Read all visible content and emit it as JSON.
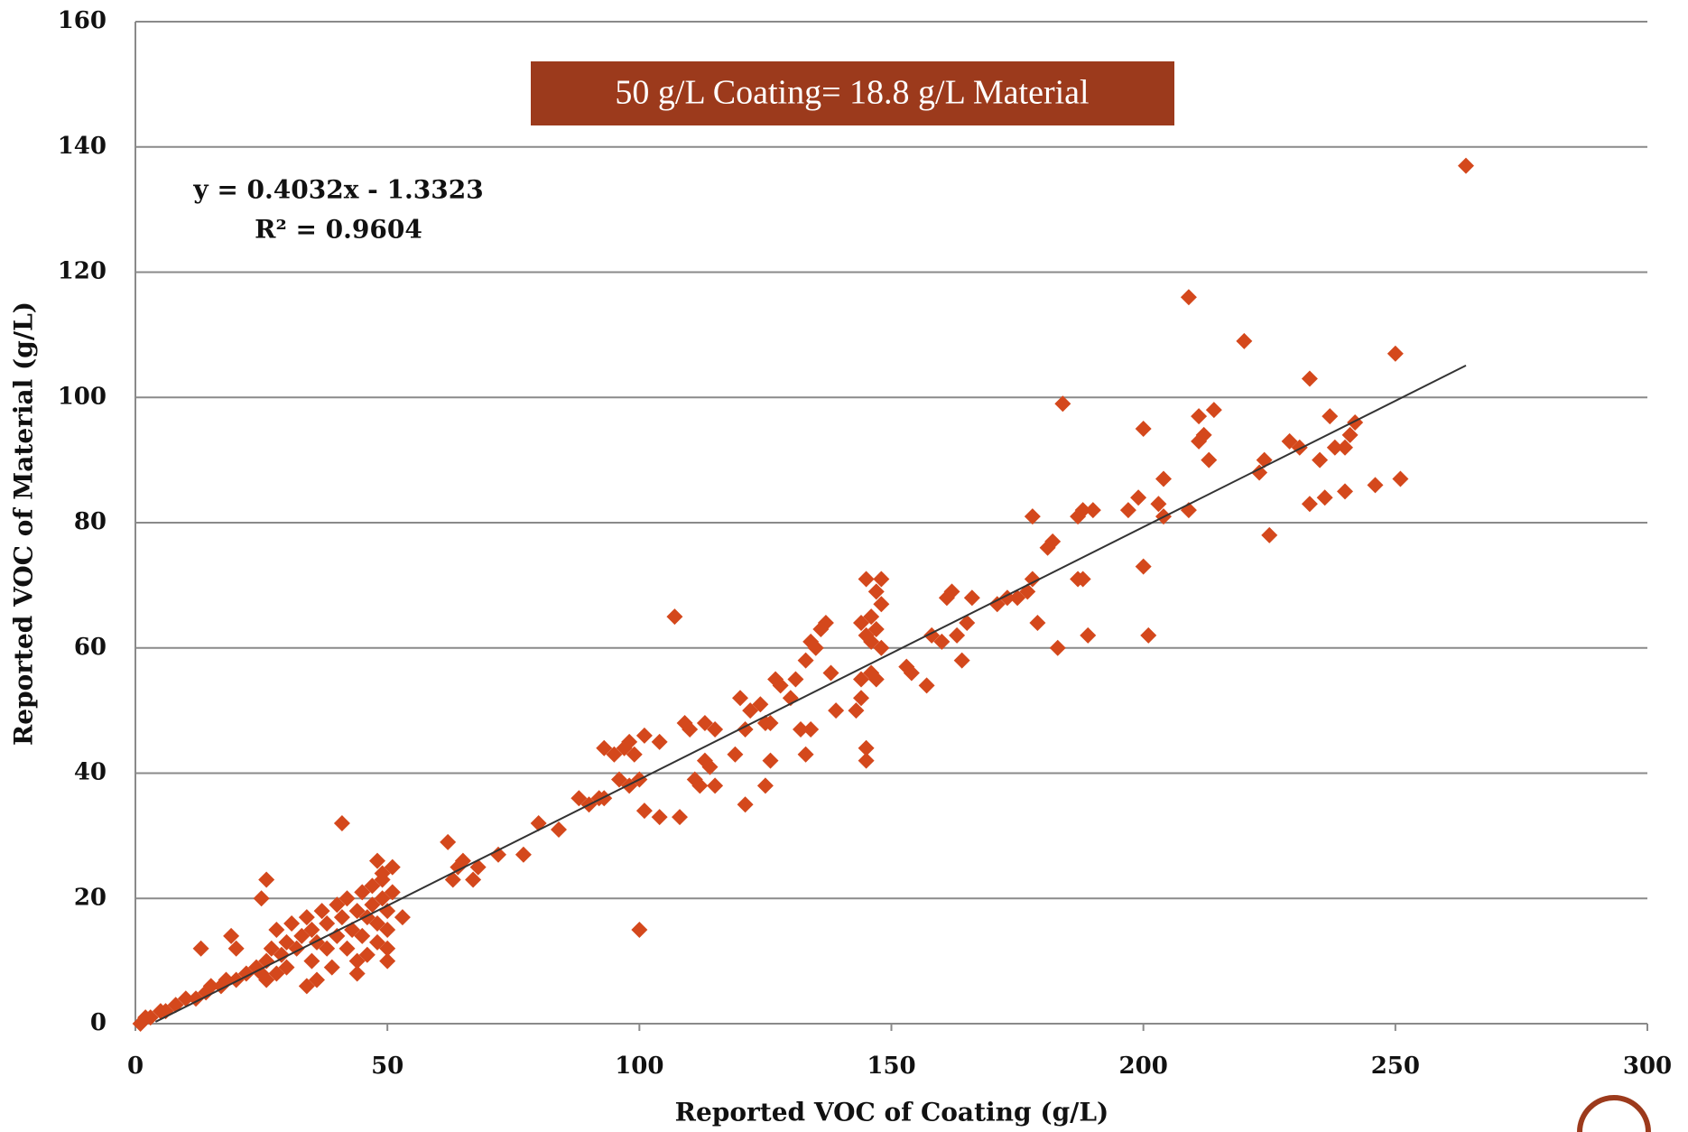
{
  "chart_data": {
    "type": "scatter",
    "annotation": "50 g/L Coating= 18.8 g/L Material",
    "equation": "y = 0.4032x - 1.3323",
    "r_squared": "R² = 0.9604",
    "x_label": "Reported VOC of Coating (g/L)",
    "y_label": "Reported VOC of Material (g/L)",
    "color": "#d4481c",
    "x": [
      264,
      209,
      220,
      250,
      233,
      184,
      211,
      214,
      200,
      237,
      212,
      211,
      213,
      224,
      223,
      229,
      231,
      235,
      238,
      240,
      242,
      241,
      233,
      236,
      240,
      246,
      251,
      225,
      204,
      209,
      197,
      199,
      203,
      204,
      190,
      188,
      187,
      178,
      182,
      181,
      200,
      187,
      188,
      178,
      177,
      179,
      183,
      189,
      201,
      173,
      175,
      171,
      166,
      165,
      162,
      161,
      163,
      160,
      164,
      158,
      157,
      154,
      153,
      148,
      145,
      147,
      148,
      146,
      144,
      145,
      146,
      147,
      148,
      144,
      146,
      143,
      144,
      147,
      145,
      145,
      137,
      136,
      134,
      135,
      133,
      131,
      138,
      130,
      139,
      132,
      134,
      133,
      127,
      128,
      125,
      126,
      124,
      126,
      125,
      122,
      121,
      120,
      119,
      121,
      115,
      113,
      114,
      113,
      109,
      110,
      111,
      112,
      115,
      107,
      108,
      104,
      101,
      98,
      97,
      99,
      96,
      98,
      100,
      101,
      104,
      100,
      93,
      95,
      92,
      90,
      93,
      88,
      84,
      80,
      77,
      72,
      68,
      65,
      64,
      62,
      63,
      67,
      41,
      48,
      49,
      53,
      26,
      25,
      13,
      19,
      20,
      1,
      2,
      3,
      5,
      6,
      8,
      10,
      12,
      14,
      15,
      17,
      18,
      20,
      22,
      24,
      25,
      26,
      27,
      28,
      29,
      30,
      31,
      32,
      33,
      34,
      35,
      35,
      36,
      37,
      38,
      38,
      39,
      40,
      40,
      41,
      42,
      42,
      43,
      44,
      44,
      45,
      45,
      46,
      46,
      47,
      47,
      48,
      48,
      49,
      49,
      50,
      50,
      50,
      51,
      51,
      50,
      36,
      34,
      30,
      28,
      26,
      44
    ],
    "values": [
      137,
      116,
      109,
      107,
      103,
      99,
      97,
      98,
      95,
      97,
      94,
      93,
      90,
      90,
      88,
      93,
      92,
      90,
      92,
      92,
      96,
      94,
      83,
      84,
      85,
      86,
      87,
      78,
      87,
      82,
      82,
      84,
      83,
      81,
      82,
      82,
      81,
      81,
      77,
      76,
      73,
      71,
      71,
      71,
      69,
      64,
      60,
      62,
      62,
      68,
      68,
      67,
      68,
      64,
      69,
      68,
      62,
      61,
      58,
      62,
      54,
      56,
      57,
      71,
      71,
      69,
      67,
      65,
      64,
      62,
      61,
      63,
      60,
      55,
      56,
      50,
      52,
      55,
      44,
      42,
      64,
      63,
      61,
      60,
      58,
      55,
      56,
      52,
      50,
      47,
      47,
      43,
      55,
      54,
      48,
      48,
      51,
      42,
      38,
      50,
      47,
      52,
      43,
      35,
      47,
      48,
      41,
      42,
      48,
      47,
      39,
      38,
      38,
      65,
      33,
      45,
      46,
      45,
      44,
      43,
      39,
      38,
      39,
      34,
      33,
      15,
      44,
      43,
      36,
      35,
      36,
      36,
      31,
      32,
      27,
      27,
      25,
      26,
      25,
      29,
      23,
      23,
      32,
      26,
      24,
      17,
      23,
      20,
      12,
      14,
      12,
      0,
      1,
      1,
      2,
      2,
      3,
      4,
      4,
      5,
      6,
      6,
      7,
      7,
      8,
      9,
      8,
      10,
      12,
      15,
      11,
      13,
      16,
      12,
      14,
      17,
      10,
      15,
      13,
      18,
      12,
      16,
      9,
      14,
      19,
      17,
      12,
      20,
      15,
      18,
      10,
      21,
      14,
      17,
      11,
      22,
      19,
      13,
      16,
      20,
      23,
      18,
      12,
      15,
      21,
      25,
      10,
      7,
      6,
      9,
      8,
      7,
      8
    ],
    "trendline": {
      "x": [
        4,
        264
      ],
      "y": [
        0.3,
        105.1
      ]
    },
    "xlim": [
      0,
      300
    ],
    "xticks": [
      0,
      50,
      100,
      150,
      200,
      250,
      300
    ],
    "ylim": [
      0,
      160
    ],
    "yticks": [
      0,
      20,
      40,
      60,
      80,
      100,
      120,
      140,
      160
    ],
    "grid": true
  }
}
